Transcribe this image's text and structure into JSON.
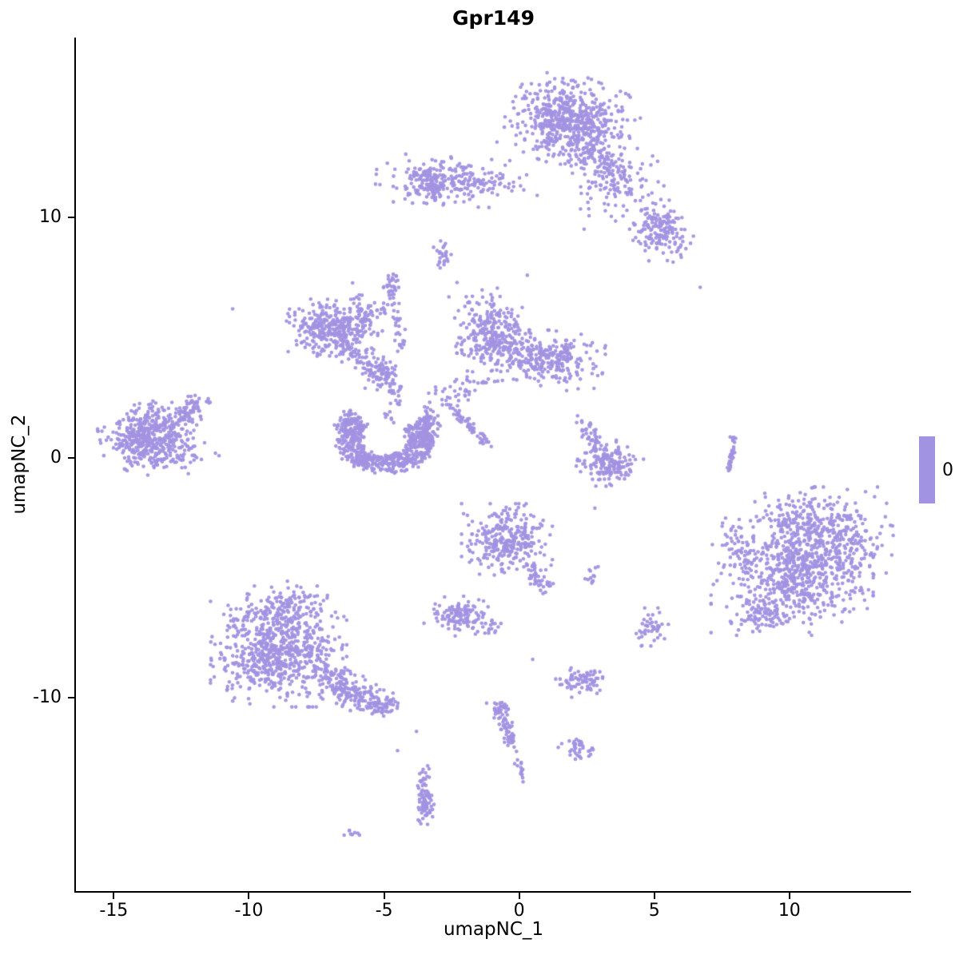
{
  "chart_data": {
    "type": "scatter",
    "title": "Gpr149",
    "xlabel": "umapNC_1",
    "ylabel": "umapNC_2",
    "xlim": [
      -16.4,
      14.5
    ],
    "ylim": [
      -18.05,
      17.5
    ],
    "x_ticks": [
      -15,
      -10,
      -5,
      0,
      5,
      10
    ],
    "y_ticks": [
      -10,
      0,
      10
    ],
    "grid": false,
    "point_color": "#A292E2",
    "point_radius": 2.3,
    "legend": {
      "label": "0",
      "color": "#A292E2"
    },
    "clusters": [
      {
        "name": "top-main",
        "shape": "blob",
        "cx": 1.9,
        "cy": 14.0,
        "sx": 0.95,
        "sy": 0.8,
        "rot": -25,
        "n": 620
      },
      {
        "name": "top-main-arm",
        "shape": "strand",
        "x1": 2.9,
        "y1": 12.7,
        "x2": 4.0,
        "y2": 11.4,
        "jitter": 0.3,
        "n": 80
      },
      {
        "name": "top-right-scatter",
        "shape": "blob",
        "cx": 3.6,
        "cy": 11.2,
        "sx": 0.8,
        "sy": 0.7,
        "rot": 0,
        "n": 90
      },
      {
        "name": "top-right-clump",
        "shape": "blob",
        "cx": 5.2,
        "cy": 9.5,
        "sx": 0.45,
        "sy": 0.6,
        "rot": 20,
        "n": 160
      },
      {
        "name": "upper-band",
        "shape": "blob",
        "cx": -2.3,
        "cy": 11.5,
        "sx": 1.25,
        "sy": 0.42,
        "rot": -4,
        "n": 220
      },
      {
        "name": "upper-band-left-tip",
        "shape": "blob",
        "cx": -3.3,
        "cy": 11.5,
        "sx": 0.3,
        "sy": 0.38,
        "rot": 0,
        "n": 80
      },
      {
        "name": "small-upper",
        "shape": "blob",
        "cx": -2.9,
        "cy": 8.5,
        "sx": 0.16,
        "sy": 0.35,
        "rot": 0,
        "n": 25
      },
      {
        "name": "midleft-main",
        "shape": "blob",
        "cx": -7.2,
        "cy": 5.4,
        "sx": 0.6,
        "sy": 0.5,
        "rot": -10,
        "n": 230
      },
      {
        "name": "midleft-secondary",
        "shape": "blob",
        "cx": -6.0,
        "cy": 5.6,
        "sx": 0.42,
        "sy": 0.35,
        "rot": 0,
        "n": 90
      },
      {
        "name": "midleft-scatter",
        "shape": "blob",
        "cx": -5.5,
        "cy": 6.2,
        "sx": 0.5,
        "sy": 0.45,
        "rot": 0,
        "n": 30
      },
      {
        "name": "midleft-tail",
        "shape": "strand",
        "x1": -6.6,
        "y1": 4.8,
        "x2": -5.2,
        "y2": 3.7,
        "jitter": 0.26,
        "n": 90
      },
      {
        "name": "star-clump",
        "shape": "blob",
        "cx": -5.0,
        "cy": 3.4,
        "sx": 0.3,
        "sy": 0.3,
        "rot": 0,
        "n": 75
      },
      {
        "name": "diag-strand",
        "shape": "strand",
        "x1": -4.75,
        "y1": 7.4,
        "x2": -4.35,
        "y2": 4.4,
        "jitter": 0.12,
        "n": 45
      },
      {
        "name": "diag-strand-top",
        "shape": "blob",
        "cx": -4.7,
        "cy": 7.4,
        "sx": 0.14,
        "sy": 0.22,
        "rot": 0,
        "n": 15
      },
      {
        "name": "central-left",
        "shape": "blob",
        "cx": -1.0,
        "cy": 5.1,
        "sx": 0.58,
        "sy": 0.8,
        "rot": 8,
        "n": 300
      },
      {
        "name": "central-right",
        "shape": "blob",
        "cx": 1.1,
        "cy": 4.1,
        "sx": 0.85,
        "sy": 0.5,
        "rot": -8,
        "n": 260
      },
      {
        "name": "central-tail",
        "shape": "strand",
        "x1": -1.7,
        "y1": 3.4,
        "x2": -2.4,
        "y2": 2.5,
        "jitter": 0.2,
        "n": 25
      },
      {
        "name": "central-below-scatter",
        "shape": "blob",
        "cx": -3.0,
        "cy": 2.6,
        "sx": 0.5,
        "sy": 0.5,
        "rot": 0,
        "n": 18
      },
      {
        "name": "horseshoe",
        "shape": "arc",
        "cx": -4.95,
        "cy": 0.75,
        "r1": 0.85,
        "r2": 1.8,
        "a1": 140,
        "a2": 400,
        "ry": 0.8,
        "n": 520
      },
      {
        "name": "horseshoe-right-tip",
        "shape": "blob",
        "cx": -3.45,
        "cy": 1.1,
        "sx": 0.22,
        "sy": 0.45,
        "rot": 0,
        "n": 90
      },
      {
        "name": "horseshoe-left-tip",
        "shape": "blob",
        "cx": -6.3,
        "cy": 1.4,
        "sx": 0.25,
        "sy": 0.3,
        "rot": 0,
        "n": 70
      },
      {
        "name": "horseshoe-upper-scatter",
        "shape": "strand",
        "x1": -4.8,
        "y1": 1.6,
        "x2": -4.5,
        "y2": 3.1,
        "jitter": 0.18,
        "n": 22
      },
      {
        "name": "left-main",
        "shape": "blob",
        "cx": -13.6,
        "cy": 1.0,
        "sx": 0.8,
        "sy": 0.55,
        "rot": 12,
        "n": 450
      },
      {
        "name": "left-arm",
        "shape": "strand",
        "x1": -12.5,
        "y1": 1.7,
        "x2": -11.7,
        "y2": 2.5,
        "jitter": 0.18,
        "n": 55
      },
      {
        "name": "left-bottom",
        "shape": "blob",
        "cx": -12.9,
        "cy": -0.05,
        "sx": 0.75,
        "sy": 0.28,
        "rot": 5,
        "n": 60
      },
      {
        "name": "thin-diag",
        "shape": "strand",
        "x1": -2.6,
        "y1": 2.2,
        "x2": -1.15,
        "y2": 0.55,
        "jitter": 0.09,
        "n": 55
      },
      {
        "name": "right-center",
        "shape": "blob",
        "cx": 3.35,
        "cy": -0.25,
        "sx": 0.5,
        "sy": 0.42,
        "rot": -10,
        "n": 170
      },
      {
        "name": "right-center-top",
        "shape": "strand",
        "x1": 2.35,
        "y1": 1.5,
        "x2": 2.95,
        "y2": 0.35,
        "jitter": 0.17,
        "n": 45
      },
      {
        "name": "vert-strand",
        "shape": "strand",
        "x1": 7.95,
        "y1": 0.9,
        "x2": 7.78,
        "y2": -0.55,
        "jitter": 0.06,
        "n": 35
      },
      {
        "name": "big-right-a",
        "shape": "blob",
        "cx": 10.1,
        "cy": -5.0,
        "sx": 1.25,
        "sy": 1.0,
        "rot": 0,
        "n": 520
      },
      {
        "name": "big-right-b",
        "shape": "blob",
        "cx": 11.2,
        "cy": -3.5,
        "sx": 1.1,
        "sy": 0.95,
        "rot": 0,
        "n": 420
      },
      {
        "name": "big-right-top",
        "shape": "blob",
        "cx": 10.3,
        "cy": -2.4,
        "sx": 0.9,
        "sy": 0.5,
        "rot": 0,
        "n": 60
      },
      {
        "name": "big-right-west-strand",
        "shape": "strand",
        "x1": 7.8,
        "y1": -2.7,
        "x2": 8.4,
        "y2": -4.8,
        "jitter": 0.18,
        "n": 45
      },
      {
        "name": "big-right-sw",
        "shape": "blob",
        "cx": 8.9,
        "cy": -6.7,
        "sx": 0.45,
        "sy": 0.3,
        "rot": 20,
        "n": 60
      },
      {
        "name": "central-lower",
        "shape": "blob",
        "cx": -0.45,
        "cy": -3.4,
        "sx": 0.7,
        "sy": 0.62,
        "rot": 0,
        "n": 300
      },
      {
        "name": "central-lower-tail",
        "shape": "strand",
        "x1": 0.4,
        "y1": -4.5,
        "x2": 1.0,
        "y2": -5.5,
        "jitter": 0.16,
        "n": 45
      },
      {
        "name": "small-left-lower",
        "shape": "blob",
        "cx": -2.2,
        "cy": -6.6,
        "sx": 0.5,
        "sy": 0.35,
        "rot": -15,
        "n": 120
      },
      {
        "name": "small-left-lower-b",
        "shape": "blob",
        "cx": -1.0,
        "cy": -6.9,
        "sx": 0.15,
        "sy": 0.25,
        "rot": 0,
        "n": 14
      },
      {
        "name": "tiny-mid",
        "shape": "blob",
        "cx": 2.65,
        "cy": -4.85,
        "sx": 0.14,
        "sy": 0.25,
        "rot": 0,
        "n": 12
      },
      {
        "name": "small-right",
        "shape": "blob",
        "cx": 4.9,
        "cy": -7.05,
        "sx": 0.3,
        "sy": 0.33,
        "rot": 0,
        "n": 45
      },
      {
        "name": "lowerleft-main",
        "shape": "blob",
        "cx": -8.9,
        "cy": -8.1,
        "sx": 1.05,
        "sy": 0.95,
        "rot": 0,
        "n": 650
      },
      {
        "name": "lowerleft-top",
        "shape": "blob",
        "cx": -8.5,
        "cy": -6.3,
        "sx": 0.65,
        "sy": 0.5,
        "rot": 0,
        "n": 130
      },
      {
        "name": "lowerleft-arm",
        "shape": "strand",
        "x1": -7.2,
        "y1": -9.2,
        "x2": -5.4,
        "y2": -10.2,
        "jitter": 0.32,
        "n": 170
      },
      {
        "name": "lowerleft-arm-tip",
        "shape": "blob",
        "cx": -5.2,
        "cy": -10.3,
        "sx": 0.35,
        "sy": 0.27,
        "rot": -15,
        "n": 70
      },
      {
        "name": "lowerleft-nw-scatter",
        "shape": "blob",
        "cx": -10.2,
        "cy": -7.0,
        "sx": 0.5,
        "sy": 0.45,
        "rot": 0,
        "n": 30
      },
      {
        "name": "small-center-low",
        "shape": "blob",
        "cx": 2.3,
        "cy": -9.3,
        "sx": 0.42,
        "sy": 0.26,
        "rot": 8,
        "n": 70
      },
      {
        "name": "below-strand",
        "shape": "strand",
        "x1": -0.75,
        "y1": -10.45,
        "x2": -0.15,
        "y2": -12.1,
        "jitter": 0.12,
        "n": 55
      },
      {
        "name": "below-strand-top",
        "shape": "blob",
        "cx": -0.75,
        "cy": -10.45,
        "sx": 0.2,
        "sy": 0.16,
        "rot": 0,
        "n": 20
      },
      {
        "name": "below-strand-bottom",
        "shape": "blob",
        "cx": 0.1,
        "cy": -12.9,
        "sx": 0.16,
        "sy": 0.28,
        "rot": 0,
        "n": 16
      },
      {
        "name": "small-lowmid",
        "shape": "blob",
        "cx": 2.2,
        "cy": -12.1,
        "sx": 0.3,
        "sy": 0.24,
        "rot": -20,
        "n": 40
      },
      {
        "name": "bottom-strand",
        "shape": "strand",
        "x1": -3.58,
        "y1": -12.9,
        "x2": -3.45,
        "y2": -14.5,
        "jitter": 0.1,
        "n": 40
      },
      {
        "name": "bottom-strand-tip",
        "shape": "blob",
        "cx": -3.5,
        "cy": -14.6,
        "sx": 0.17,
        "sy": 0.3,
        "rot": 0,
        "n": 45
      },
      {
        "name": "bottom-tiny",
        "shape": "blob",
        "cx": -6.1,
        "cy": -15.6,
        "sx": 0.22,
        "sy": 0.1,
        "rot": -15,
        "n": 8
      }
    ],
    "singles": [
      [
        -10.6,
        6.2
      ],
      [
        6.7,
        7.1
      ],
      [
        4.8,
        8.2
      ],
      [
        -3.8,
        -11.4
      ],
      [
        -4.5,
        -12.2
      ],
      [
        2.8,
        -2.1
      ],
      [
        0.5,
        -8.4
      ],
      [
        -2.6,
        6.7
      ],
      [
        -2.3,
        7.3
      ],
      [
        0.3,
        7.6
      ]
    ]
  }
}
